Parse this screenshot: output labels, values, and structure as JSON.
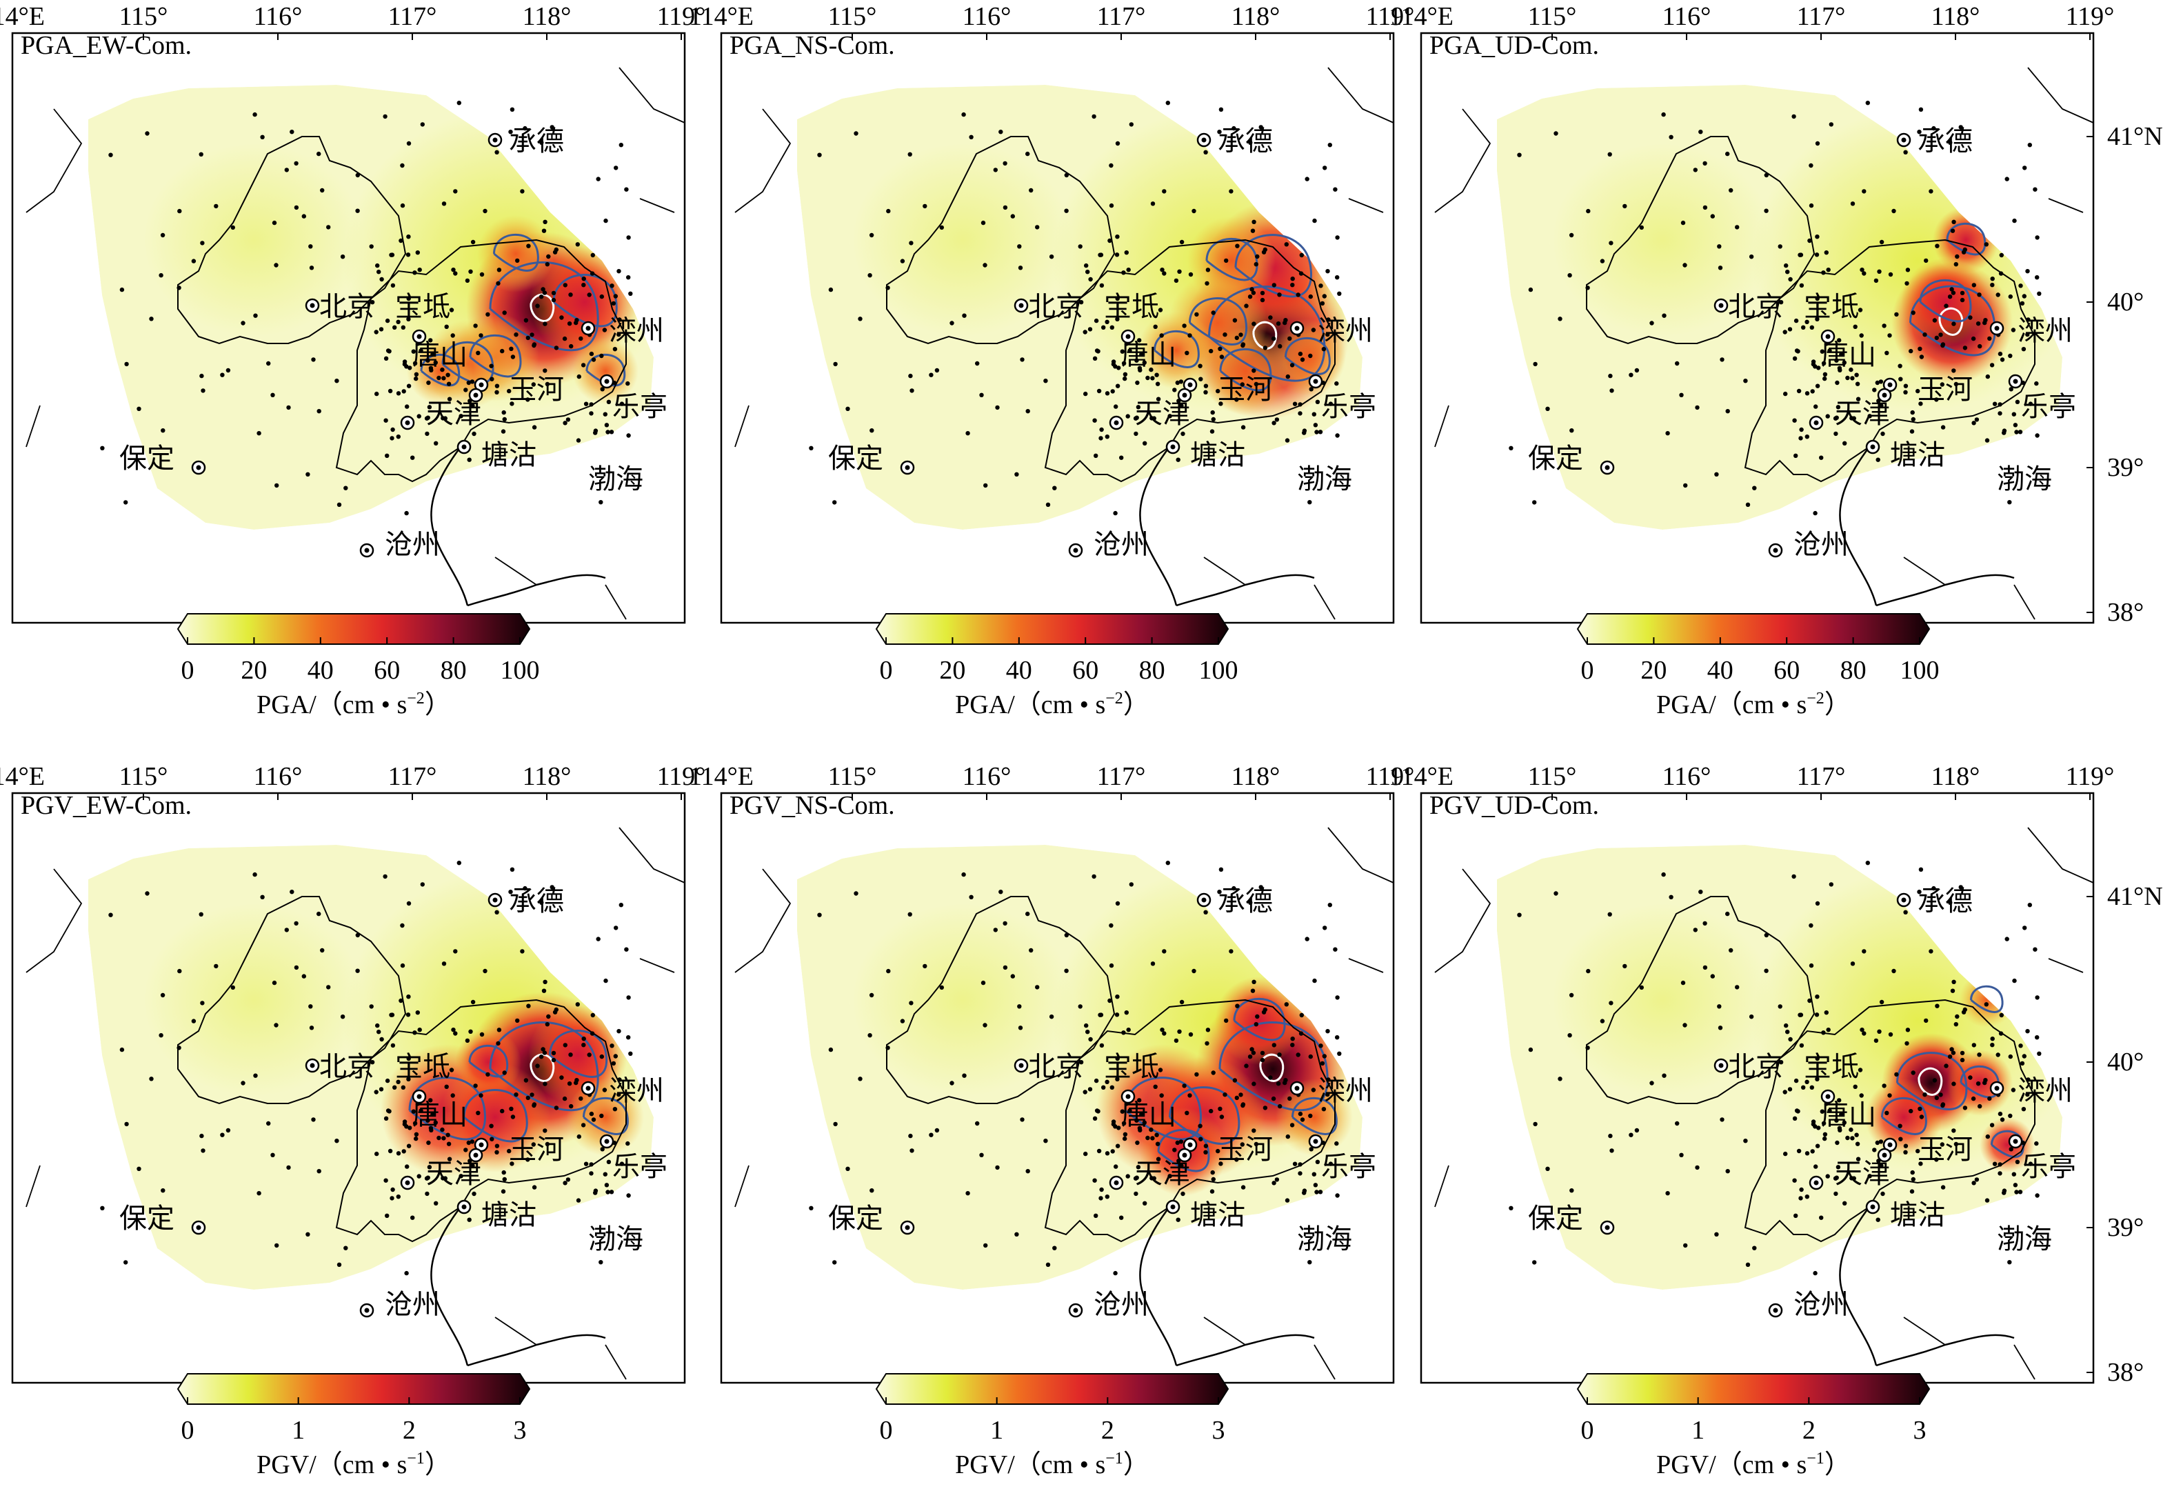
{
  "axes": {
    "top_ticks": [
      "114°E",
      "115°",
      "116°",
      "117°",
      "118°",
      "119°"
    ],
    "right_ticks": [
      "41°N",
      "40°",
      "39°",
      "38°"
    ]
  },
  "cities": [
    {
      "name": "承德"
    },
    {
      "name": "北京"
    },
    {
      "name": "宝坻"
    },
    {
      "name": "唐山"
    },
    {
      "name": "滦州"
    },
    {
      "name": "玉河"
    },
    {
      "name": "乐亭"
    },
    {
      "name": "天津"
    },
    {
      "name": "塘沽"
    },
    {
      "name": "保定"
    },
    {
      "name": "沧州"
    },
    {
      "name": "渤海"
    }
  ],
  "panels": [
    {
      "label": "PGA_EW-Com."
    },
    {
      "label": "PGA_NS-Com."
    },
    {
      "label": "PGA_UD-Com."
    },
    {
      "label": "PGV_EW-Com."
    },
    {
      "label": "PGV_NS-Com."
    },
    {
      "label": "PGV_UD-Com."
    }
  ],
  "colorbars": {
    "pga": {
      "ticks": [
        "0",
        "20",
        "40",
        "60",
        "80",
        "100"
      ],
      "label": "PGA/（cm • s",
      "exp": "−2",
      "close": "）",
      "range": [
        0,
        100
      ]
    },
    "pgv": {
      "ticks": [
        "0",
        "1",
        "2",
        "3"
      ],
      "label": "PGV/（cm • s",
      "exp": "−1",
      "close": "）",
      "range": [
        0,
        3
      ]
    }
  },
  "colors": {
    "low": "#f6f8c8",
    "mid_yellow": "#e2ec3a",
    "orange": "#f07020",
    "red": "#e02828",
    "dark": "#400010",
    "contour": "#3a5a9a"
  }
}
